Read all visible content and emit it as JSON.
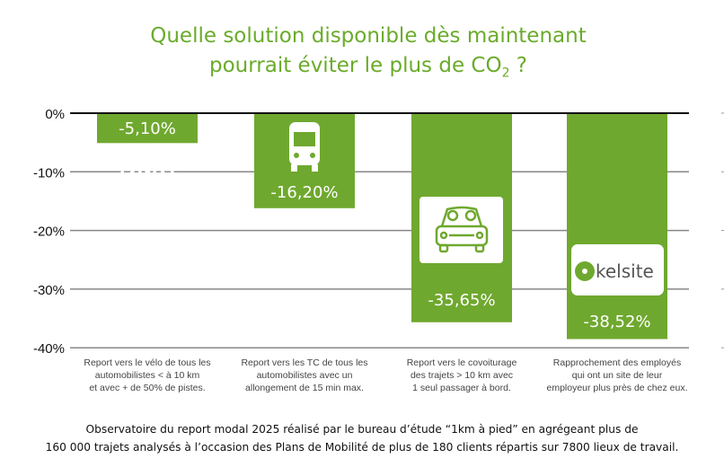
{
  "chart_data": {
    "type": "bar",
    "title_line1": "Quelle solution disponible dès maintenant",
    "title_line2_main": "pourrait éviter le plus de CO",
    "title_line2_sub": "2",
    "title_line2_end": " ?",
    "ylim": [
      -40,
      0
    ],
    "yticks": [
      {
        "value": 0,
        "label": "0%"
      },
      {
        "value": -10,
        "label": "-10%"
      },
      {
        "value": -20,
        "label": "-20%"
      },
      {
        "value": -30,
        "label": "-30%"
      },
      {
        "value": -40,
        "label": "-40%"
      }
    ],
    "grid": true,
    "bar_color": "#6fa82f",
    "title_color": "#6aab2a",
    "categories": [
      {
        "lines": [
          "Report vers le vélo de tous les",
          "automobilistes < à 10 km",
          "et avec + de 50% de pistes."
        ],
        "value": -5.1,
        "label": "-5,10%",
        "icon": "bicycle-icon"
      },
      {
        "lines": [
          "Report vers les TC de tous les",
          "automobilistes avec un",
          "allongement de 15 min max."
        ],
        "value": -16.2,
        "label": "-16,20%",
        "icon": "bus-icon"
      },
      {
        "lines": [
          "Report vers le covoiturage",
          "des trajets > 10 km avec",
          "1 seul passager à bord."
        ],
        "value": -35.65,
        "label": "-35,65%",
        "icon": "carpool-icon"
      },
      {
        "lines": [
          "Rapprochement des employés",
          "qui ont un site de leur",
          "employeur plus près de chez eux."
        ],
        "value": -38.52,
        "label": "-38,52%",
        "icon": "kelsite-logo",
        "logo_text": "kelsite"
      }
    ]
  },
  "footer": {
    "line1": "Observatoire du report modal 2025 réalisé par le bureau d’étude “1km à pied” en agrégeant plus de",
    "line2": "160 000 trajets analysés à l’occasion des Plans de Mobilité de plus de 180 clients répartis sur 7800 lieux de travail."
  }
}
